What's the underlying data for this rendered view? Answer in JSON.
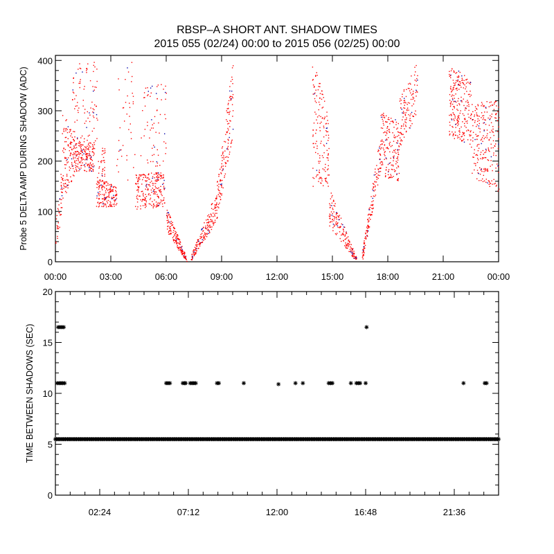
{
  "title": "RBSP–A SHORT ANT. SHADOW TIMES",
  "subtitle": "2015 055 (02/24) 00:00 to 2015 056 (02/25) 00:00",
  "chart_data": [
    {
      "type": "scatter",
      "ylabel": "Probe 5 DELTA AMP DURING SHADOW (ADC)",
      "xlabel": "",
      "xlim": [
        0,
        24
      ],
      "ylim": [
        0,
        410
      ],
      "x_unit": "hours",
      "xtick_labels": [
        "00:00",
        "03:00",
        "06:00",
        "09:00",
        "12:00",
        "15:00",
        "18:00",
        "21:00",
        "00:00"
      ],
      "xtick_values": [
        0,
        3,
        6,
        9,
        12,
        15,
        18,
        21,
        24
      ],
      "ytick_labels": [
        "0",
        "100",
        "200",
        "300",
        "400"
      ],
      "ytick_values": [
        0,
        100,
        200,
        300,
        400
      ],
      "marker_color": "#ff0000",
      "point_density_note": "dense point clouds; each segment gives time range and value envelope (low at start, high at start, low at end, high at end)",
      "segments": [
        {
          "t0": 0.0,
          "t1": 0.35,
          "lo0": 20,
          "hi0": 80,
          "lo1": 90,
          "hi1": 200,
          "n": 40
        },
        {
          "t0": 0.35,
          "t1": 1.0,
          "lo0": 120,
          "hi0": 300,
          "lo1": 170,
          "hi1": 260,
          "n": 120
        },
        {
          "t0": 1.0,
          "t1": 2.1,
          "lo0": 180,
          "hi0": 240,
          "lo1": 180,
          "hi1": 240,
          "n": 180
        },
        {
          "t0": 0.9,
          "t1": 2.3,
          "lo0": 240,
          "hi0": 400,
          "lo1": 240,
          "hi1": 400,
          "n": 90
        },
        {
          "t0": 2.2,
          "t1": 3.3,
          "lo0": 110,
          "hi0": 170,
          "lo1": 110,
          "hi1": 150,
          "n": 170
        },
        {
          "t0": 2.3,
          "t1": 2.7,
          "lo0": 170,
          "hi0": 230,
          "lo1": 170,
          "hi1": 230,
          "n": 30
        },
        {
          "t0": 3.3,
          "t1": 4.3,
          "lo0": 160,
          "hi0": 400,
          "lo1": 160,
          "hi1": 400,
          "n": 40
        },
        {
          "t0": 4.3,
          "t1": 5.9,
          "lo0": 105,
          "hi0": 175,
          "lo1": 110,
          "hi1": 180,
          "n": 220
        },
        {
          "t0": 4.6,
          "t1": 6.0,
          "lo0": 170,
          "hi0": 350,
          "lo1": 200,
          "hi1": 360,
          "n": 70
        },
        {
          "t0": 6.0,
          "t1": 7.1,
          "lo0": 60,
          "hi0": 110,
          "lo1": 0,
          "hi1": 8,
          "n": 160
        },
        {
          "t0": 7.3,
          "t1": 8.7,
          "lo0": 0,
          "hi0": 10,
          "lo1": 80,
          "hi1": 140,
          "n": 170
        },
        {
          "t0": 8.7,
          "t1": 9.6,
          "lo0": 80,
          "hi0": 150,
          "lo1": 250,
          "hi1": 400,
          "n": 150
        },
        {
          "t0": 13.9,
          "t1": 14.8,
          "lo0": 150,
          "hi0": 400,
          "lo1": 150,
          "hi1": 320,
          "n": 150
        },
        {
          "t0": 14.8,
          "t1": 16.3,
          "lo0": 70,
          "hi0": 150,
          "lo1": 0,
          "hi1": 8,
          "n": 170
        },
        {
          "t0": 16.6,
          "t1": 17.6,
          "lo0": 0,
          "hi0": 20,
          "lo1": 180,
          "hi1": 260,
          "n": 150
        },
        {
          "t0": 17.6,
          "t1": 18.6,
          "lo0": 170,
          "hi0": 300,
          "lo1": 160,
          "hi1": 280,
          "n": 170
        },
        {
          "t0": 18.6,
          "t1": 19.6,
          "lo0": 220,
          "hi0": 330,
          "lo1": 300,
          "hi1": 400,
          "n": 120
        },
        {
          "t0": 21.3,
          "t1": 22.5,
          "lo0": 250,
          "hi0": 400,
          "lo1": 230,
          "hi1": 360,
          "n": 230
        },
        {
          "t0": 22.5,
          "t1": 24.0,
          "lo0": 170,
          "hi0": 320,
          "lo1": 140,
          "hi1": 320,
          "n": 230
        }
      ]
    },
    {
      "type": "scatter",
      "ylabel": "TIME BETWEEN SHADOWS (SEC)",
      "xlabel": "",
      "xlim": [
        0,
        24
      ],
      "ylim": [
        0,
        20
      ],
      "x_unit": "hours",
      "xtick_labels": [
        "02:24",
        "07:12",
        "12:00",
        "16:48",
        "21:36"
      ],
      "xtick_values": [
        2.4,
        7.2,
        12.0,
        16.8,
        21.6
      ],
      "ytick_labels": [
        "0",
        "5",
        "10",
        "15",
        "20"
      ],
      "ytick_values": [
        0,
        5,
        10,
        15,
        20
      ],
      "marker": "asterisk",
      "marker_color": "#000000",
      "baseline": {
        "value": 5.5,
        "t0": 0.0,
        "t1": 24.0,
        "step": 0.06
      },
      "points": [
        {
          "x": 0.1,
          "y": 11
        },
        {
          "x": 0.2,
          "y": 11
        },
        {
          "x": 0.3,
          "y": 11
        },
        {
          "x": 0.4,
          "y": 11
        },
        {
          "x": 0.5,
          "y": 11
        },
        {
          "x": 6.0,
          "y": 11
        },
        {
          "x": 6.1,
          "y": 11
        },
        {
          "x": 6.2,
          "y": 11
        },
        {
          "x": 6.9,
          "y": 11
        },
        {
          "x": 7.0,
          "y": 11
        },
        {
          "x": 7.05,
          "y": 11
        },
        {
          "x": 7.3,
          "y": 11
        },
        {
          "x": 7.4,
          "y": 11
        },
        {
          "x": 7.5,
          "y": 11
        },
        {
          "x": 7.6,
          "y": 11
        },
        {
          "x": 8.75,
          "y": 11
        },
        {
          "x": 8.85,
          "y": 11
        },
        {
          "x": 10.2,
          "y": 11
        },
        {
          "x": 12.08,
          "y": 10.9
        },
        {
          "x": 13.0,
          "y": 11
        },
        {
          "x": 13.4,
          "y": 11
        },
        {
          "x": 14.8,
          "y": 11
        },
        {
          "x": 14.9,
          "y": 11
        },
        {
          "x": 15.0,
          "y": 11
        },
        {
          "x": 16.0,
          "y": 11
        },
        {
          "x": 16.3,
          "y": 11
        },
        {
          "x": 16.4,
          "y": 11
        },
        {
          "x": 16.5,
          "y": 11
        },
        {
          "x": 16.8,
          "y": 11
        },
        {
          "x": 22.1,
          "y": 11
        },
        {
          "x": 23.25,
          "y": 11
        },
        {
          "x": 23.35,
          "y": 11
        },
        {
          "x": 0.15,
          "y": 16.5
        },
        {
          "x": 0.25,
          "y": 16.5
        },
        {
          "x": 0.35,
          "y": 16.5
        },
        {
          "x": 0.45,
          "y": 16.5
        },
        {
          "x": 16.85,
          "y": 16.5
        }
      ]
    }
  ]
}
